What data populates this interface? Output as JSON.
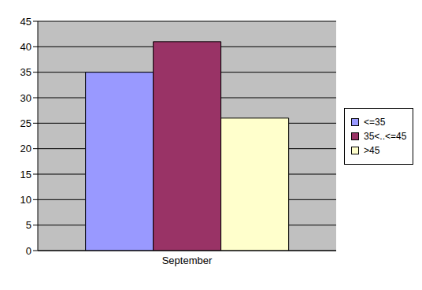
{
  "chart_data": {
    "type": "bar",
    "categories": [
      "September"
    ],
    "series": [
      {
        "name": "<=35",
        "color": "#9999ff",
        "values": [
          35
        ]
      },
      {
        "name": "35<..<=45",
        "color": "#993366",
        "values": [
          41
        ]
      },
      {
        "name": ">45",
        "color": "#ffffcc",
        "values": [
          26
        ]
      }
    ],
    "ylim": [
      0,
      45
    ],
    "yticks": [
      0,
      5,
      10,
      15,
      20,
      25,
      30,
      35,
      40,
      45
    ],
    "grid": true,
    "legend": "right"
  }
}
